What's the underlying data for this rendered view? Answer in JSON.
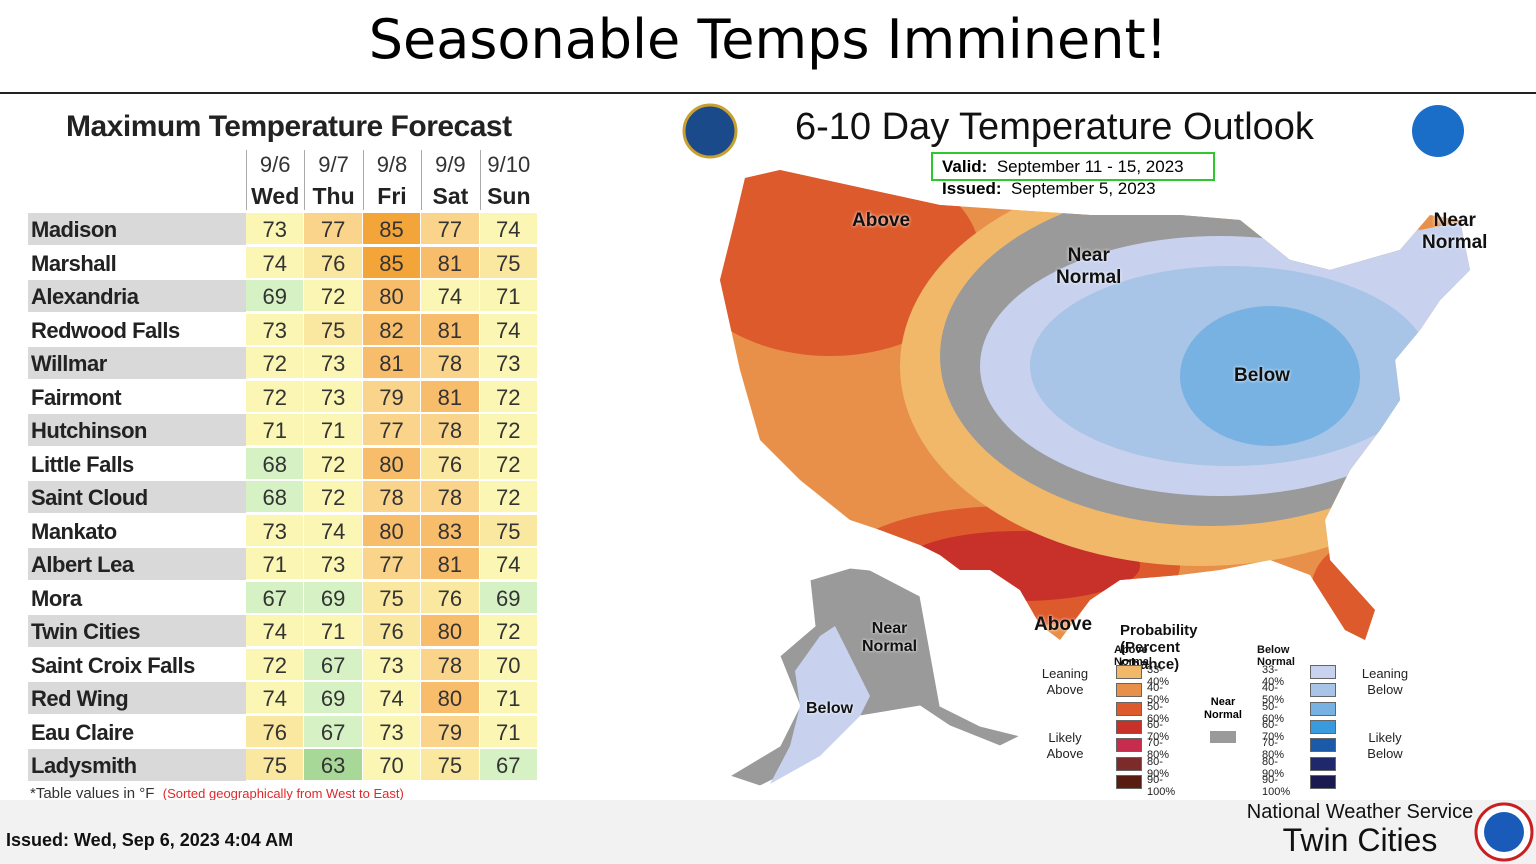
{
  "header": {
    "title": "Seasonable Temps Imminent!"
  },
  "table": {
    "title": "Maximum Temperature Forecast",
    "columns": [
      {
        "date": "9/6",
        "day": "Wed"
      },
      {
        "date": "9/7",
        "day": "Thu"
      },
      {
        "date": "9/8",
        "day": "Fri"
      },
      {
        "date": "9/9",
        "day": "Sat"
      },
      {
        "date": "9/10",
        "day": "Sun"
      }
    ],
    "rows": [
      {
        "name": "Madison",
        "values": [
          73,
          77,
          85,
          77,
          74
        ]
      },
      {
        "name": "Marshall",
        "values": [
          74,
          76,
          85,
          81,
          75
        ]
      },
      {
        "name": "Alexandria",
        "values": [
          69,
          72,
          80,
          74,
          71
        ]
      },
      {
        "name": "Redwood Falls",
        "values": [
          73,
          75,
          82,
          81,
          74
        ]
      },
      {
        "name": "Willmar",
        "values": [
          72,
          73,
          81,
          78,
          73
        ]
      },
      {
        "name": "Fairmont",
        "values": [
          72,
          73,
          79,
          81,
          72
        ]
      },
      {
        "name": "Hutchinson",
        "values": [
          71,
          71,
          77,
          78,
          72
        ]
      },
      {
        "name": "Little Falls",
        "values": [
          68,
          72,
          80,
          76,
          72
        ]
      },
      {
        "name": "Saint Cloud",
        "values": [
          68,
          72,
          78,
          78,
          72
        ]
      },
      {
        "name": "Mankato",
        "values": [
          73,
          74,
          80,
          83,
          75
        ]
      },
      {
        "name": "Albert Lea",
        "values": [
          71,
          73,
          77,
          81,
          74
        ]
      },
      {
        "name": "Mora",
        "values": [
          67,
          69,
          75,
          76,
          69
        ]
      },
      {
        "name": "Twin Cities",
        "values": [
          74,
          71,
          76,
          80,
          72
        ]
      },
      {
        "name": "Saint Croix Falls",
        "values": [
          72,
          67,
          73,
          78,
          70
        ]
      },
      {
        "name": "Red Wing",
        "values": [
          74,
          69,
          74,
          80,
          71
        ]
      },
      {
        "name": "Eau Claire",
        "values": [
          76,
          67,
          73,
          79,
          71
        ]
      },
      {
        "name": "Ladysmith",
        "values": [
          75,
          63,
          70,
          75,
          67
        ]
      }
    ],
    "footnote": "*Table values in °F",
    "sort_note": "(Sorted geographically from West to East)"
  },
  "outlook": {
    "title": "6-10 Day Temperature Outlook",
    "valid_label": "Valid:",
    "valid": "September 11 - 15, 2023",
    "issued_label": "Issued:",
    "issued": "September 5, 2023",
    "regions": [
      [
        "Above"
      ],
      [
        "Near",
        "Normal"
      ],
      [
        "Near",
        "Normal"
      ],
      [
        "Below"
      ],
      [
        "Above"
      ],
      [
        "Near",
        "Normal"
      ],
      [
        "Below"
      ]
    ],
    "legend": {
      "title": "Probability (Percent Chance)",
      "above_title": "Above Normal",
      "below_title": "Below Normal",
      "above": [
        {
          "label": "33-40%",
          "color": "#f0b868"
        },
        {
          "label": "40-50%",
          "color": "#e8904a"
        },
        {
          "label": "50-60%",
          "color": "#dc5a2c"
        },
        {
          "label": "60-70%",
          "color": "#c8302a"
        },
        {
          "label": "70-80%",
          "color": "#c82c4c"
        },
        {
          "label": "80-90%",
          "color": "#7c2a2a"
        },
        {
          "label": "90-100%",
          "color": "#581c10"
        }
      ],
      "below": [
        {
          "label": "33-40%",
          "color": "#c8d2ee"
        },
        {
          "label": "40-50%",
          "color": "#a8c4e6"
        },
        {
          "label": "50-60%",
          "color": "#78b2e2"
        },
        {
          "label": "60-70%",
          "color": "#3a9ade"
        },
        {
          "label": "70-80%",
          "color": "#1a5aa8"
        },
        {
          "label": "80-90%",
          "color": "#20286c"
        },
        {
          "label": "90-100%",
          "color": "#1a1a50"
        }
      ],
      "near": {
        "label": [
          "Near",
          "Normal"
        ],
        "color": "#9a9a9a"
      },
      "leaning_above": [
        "Leaning",
        "Above"
      ],
      "likely_above": [
        "Likely",
        "Above"
      ],
      "leaning_below": [
        "Leaning",
        "Below"
      ],
      "likely_below": [
        "Likely",
        "Below"
      ]
    }
  },
  "footer": {
    "issued": "Issued: Wed, Sep 6, 2023 4:04 AM",
    "org": "National Weather Service",
    "office": "Twin Cities"
  }
}
